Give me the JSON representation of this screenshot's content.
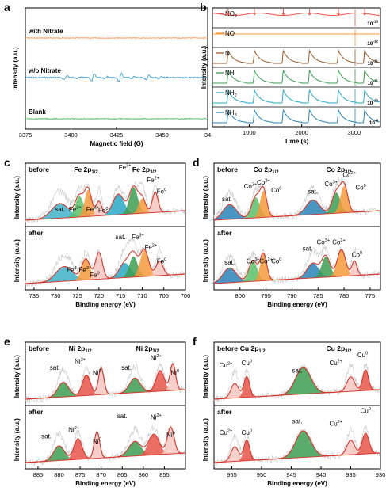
{
  "chart_data": [
    {
      "panel": "a",
      "type": "line",
      "xlabel": "Magnetic field (G)",
      "ylabel": "Intensity (a.u.)",
      "x_ticks": [
        "3375",
        "3400",
        "3425",
        "3450",
        "34"
      ],
      "xlim": [
        3375,
        3475
      ],
      "series": [
        {
          "name": "with Nitrate",
          "color": "#f5a066",
          "shape": "flat"
        },
        {
          "name": "w/o Nitrate",
          "color": "#4aa6d6",
          "shape": "dmpo-oh quartet",
          "peaks_x": [
            3397,
            3412,
            3427,
            3442
          ]
        },
        {
          "name": "Blank",
          "color": "#5cbf6a",
          "shape": "flat"
        }
      ]
    },
    {
      "panel": "b",
      "type": "line",
      "xlabel": "Time (s)",
      "ylabel": "Intensity (a.u.)",
      "x_ticks": [
        "1000",
        "2000",
        "3000"
      ],
      "xlim": [
        300,
        3500
      ],
      "pulses_x": [
        600,
        1100,
        1650,
        2150,
        2700,
        3200
      ],
      "series": [
        {
          "name": "NO",
          "sub": "2",
          "scale_base": "10",
          "scale_exp": "-13",
          "color": "#e8554a"
        },
        {
          "name": "NO",
          "sub": "",
          "scale_base": "10",
          "scale_exp": "-12",
          "color": "#f39a3c"
        },
        {
          "name": "N",
          "sub": "",
          "scale_base": "10",
          "scale_exp": "-11",
          "color": "#9a5a2a"
        },
        {
          "name": "NH",
          "sub": "",
          "scale_base": "10",
          "scale_exp": "-11",
          "color": "#3d9d53"
        },
        {
          "name": "NH",
          "sub": "2",
          "scale_base": "10",
          "scale_exp": "-10",
          "color": "#2aa9c6"
        },
        {
          "name": "NH",
          "sub": "3",
          "scale_base": "10",
          "scale_exp": "-9",
          "color": "#2a84b8"
        }
      ]
    },
    {
      "panel": "c",
      "type": "line",
      "title": "Fe",
      "xlabel": "Binding energy (eV)",
      "ylabel": "Intensity (a.u.)",
      "xlim": [
        737,
        700
      ],
      "x_ticks": [
        "735",
        "730",
        "725",
        "720",
        "715",
        "710",
        "705",
        "700"
      ],
      "labels": {
        "before": "before",
        "after": "after",
        "orb1": "Fe 2p",
        "orb1_sub": "1/2",
        "orb2": "Fe 2p",
        "orb2_sub": "3/2",
        "sat": "sat.",
        "p3": "Fe",
        "p3_sup": "3+",
        "p2": "Fe",
        "p2_sup": "2+",
        "p0": "Fe",
        "p0_sup": "0"
      },
      "peaks_before": [
        {
          "center": 729,
          "fwhm": 6,
          "color": "#3fb0c8"
        },
        {
          "center": 724.5,
          "fwhm": 3,
          "color": "#5cbf6a"
        },
        {
          "center": 722.5,
          "fwhm": 2.5,
          "color": "#f39a3c"
        },
        {
          "center": 720,
          "fwhm": 2,
          "color": "#f6c7c1"
        },
        {
          "center": 715.5,
          "fwhm": 4,
          "color": "#2aa9c6"
        },
        {
          "center": 712,
          "fwhm": 3,
          "color": "#3d9d53"
        },
        {
          "center": 710,
          "fwhm": 2.5,
          "color": "#f39a3c"
        },
        {
          "center": 707,
          "fwhm": 2,
          "color": "#f6c7c1"
        }
      ],
      "peaks_after": [
        {
          "center": 728,
          "fwhm": 6,
          "color": "#3fb0c8"
        },
        {
          "center": 723,
          "fwhm": 3,
          "color": "#f39a3c"
        },
        {
          "center": 720,
          "fwhm": 2.5,
          "color": "#f6c7c1"
        },
        {
          "center": 714,
          "fwhm": 4,
          "color": "#2aa9c6"
        },
        {
          "center": 712,
          "fwhm": 3,
          "color": "#3d9d53"
        },
        {
          "center": 709.5,
          "fwhm": 3,
          "color": "#f39a3c"
        },
        {
          "center": 706,
          "fwhm": 2.5,
          "color": "#f6c7c1"
        }
      ]
    },
    {
      "panel": "d",
      "type": "line",
      "title": "Co",
      "xlabel": "Binding energy (eV)",
      "ylabel": "Intensity (a.u.)",
      "xlim": [
        805,
        773
      ],
      "x_ticks": [
        "800",
        "795",
        "790",
        "785",
        "780",
        "775"
      ],
      "labels": {
        "before": "before",
        "after": "after",
        "orb1": "Co 2p",
        "orb1_sub": "1/2",
        "orb2": "Co 2p",
        "orb2_sub": "3/2",
        "sat": "sat.",
        "p3": "Co",
        "p3_sup": "3+",
        "p2": "Co",
        "p2_sup": "2+",
        "p0": "Co",
        "p0_sup": "0"
      },
      "peaks_before": [
        {
          "center": 802,
          "fwhm": 4,
          "color": "#2a84b8"
        },
        {
          "center": 797,
          "fwhm": 2.5,
          "color": "#5cbf6a"
        },
        {
          "center": 795.5,
          "fwhm": 2,
          "color": "#f39a3c"
        },
        {
          "center": 786,
          "fwhm": 4,
          "color": "#2a84b8"
        },
        {
          "center": 781.5,
          "fwhm": 2.5,
          "color": "#3d9d53"
        },
        {
          "center": 780,
          "fwhm": 2.2,
          "color": "#f39a3c"
        }
      ],
      "peaks_after": [
        {
          "center": 802,
          "fwhm": 4,
          "color": "#2a84b8"
        },
        {
          "center": 797.5,
          "fwhm": 2.5,
          "color": "#5cbf6a"
        },
        {
          "center": 795.5,
          "fwhm": 2,
          "color": "#f39a3c"
        },
        {
          "center": 786,
          "fwhm": 3.5,
          "color": "#2a84b8"
        },
        {
          "center": 783.5,
          "fwhm": 2.5,
          "color": "#3d9d53"
        },
        {
          "center": 780.5,
          "fwhm": 2.5,
          "color": "#f39a3c"
        },
        {
          "center": 778,
          "fwhm": 1.5,
          "color": "#f6c7c1"
        }
      ]
    },
    {
      "panel": "e",
      "type": "line",
      "title": "Ni",
      "xlabel": "Binding energy (eV)",
      "ylabel": "Intensity (a.u.)",
      "xlim": [
        888,
        850
      ],
      "x_ticks": [
        "885",
        "880",
        "875",
        "870",
        "865",
        "860",
        "855"
      ],
      "labels": {
        "before": "before",
        "after": "after",
        "orb1": "Ni 2p",
        "orb1_sub": "1/2",
        "orb2": "Ni 2p",
        "orb2_sub": "3/2",
        "sat": "sat.",
        "p2": "Ni",
        "p2_sup": "2+",
        "p0": "Ni",
        "p0_sup": "0"
      },
      "peaks_before": [
        {
          "center": 879,
          "fwhm": 4,
          "color": "#3d9d53"
        },
        {
          "center": 873.5,
          "fwhm": 3,
          "color": "#e8554a"
        },
        {
          "center": 870,
          "fwhm": 2,
          "color": "#f6c7c1"
        },
        {
          "center": 862,
          "fwhm": 4,
          "color": "#3d9d53"
        },
        {
          "center": 856,
          "fwhm": 3,
          "color": "#e8554a"
        },
        {
          "center": 853,
          "fwhm": 2,
          "color": "#f6c7c1"
        }
      ],
      "peaks_after": [
        {
          "center": 880,
          "fwhm": 4,
          "color": "#3d9d53"
        },
        {
          "center": 875.5,
          "fwhm": 3,
          "color": "#e8554a"
        },
        {
          "center": 871,
          "fwhm": 2,
          "color": "#f6c7c1"
        },
        {
          "center": 862,
          "fwhm": 4.5,
          "color": "#3d9d53"
        },
        {
          "center": 857.5,
          "fwhm": 4,
          "color": "#e8554a"
        },
        {
          "center": 853.5,
          "fwhm": 2.5,
          "color": "#f6c7c1"
        }
      ]
    },
    {
      "panel": "f",
      "type": "line",
      "title": "Cu",
      "xlabel": "Binding energy (eV)",
      "ylabel": "Intensity (a.u.)",
      "xlim": [
        958,
        930
      ],
      "x_ticks": [
        "955",
        "950",
        "945",
        "940",
        "935",
        "930"
      ],
      "labels": {
        "before": "before",
        "after": "after",
        "orb1": "Cu 2p",
        "orb1_sub": "1/2",
        "orb2": "Cu 2p",
        "orb2_sub": "3/2",
        "sat": "sat.",
        "p2": "Cu",
        "p2_sup": "2+",
        "p0": "Cu",
        "p0_sup": "0"
      },
      "peaks_before": [
        {
          "center": 954.5,
          "fwhm": 2,
          "color": "#f6c7c1"
        },
        {
          "center": 952.5,
          "fwhm": 1.5,
          "color": "#e8554a"
        },
        {
          "center": 943,
          "fwhm": 4,
          "color": "#3d9d53"
        },
        {
          "center": 935,
          "fwhm": 2,
          "color": "#f6c7c1"
        },
        {
          "center": 932.5,
          "fwhm": 1.5,
          "color": "#e8554a"
        }
      ],
      "peaks_after": [
        {
          "center": 954.5,
          "fwhm": 2,
          "color": "#f6c7c1"
        },
        {
          "center": 952.5,
          "fwhm": 1.5,
          "color": "#e8554a"
        },
        {
          "center": 943,
          "fwhm": 4,
          "color": "#3d9d53"
        },
        {
          "center": 935,
          "fwhm": 2,
          "color": "#f6c7c1"
        },
        {
          "center": 932.5,
          "fwhm": 1.8,
          "color": "#e8554a"
        }
      ]
    }
  ]
}
